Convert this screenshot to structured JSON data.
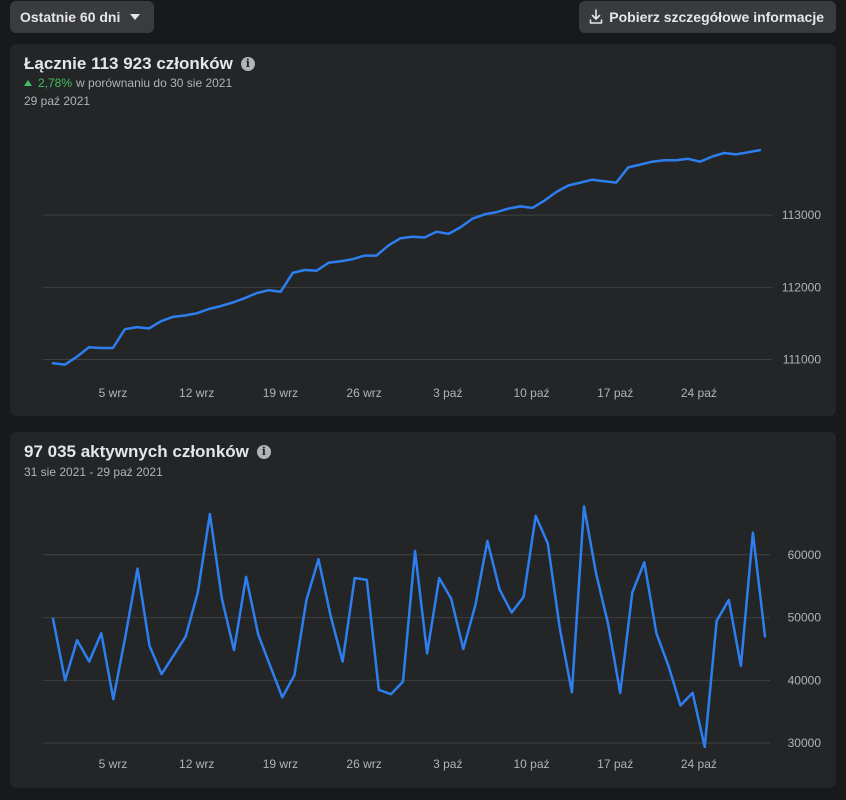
{
  "toolbar": {
    "range_label": "Ostatnie 60 dni",
    "range_icon": "chevron-down-icon",
    "download_label": "Pobierz szczegółowe informacje",
    "download_icon": "download-icon"
  },
  "members_card": {
    "title": "Łącznie 113 923 członków",
    "change_pct": "2,78%",
    "change_text": "w porównaniu do 30 sie 2021",
    "date": "29 paź 2021"
  },
  "active_card": {
    "title": "97 035 aktywnych członków",
    "date": "31 sie 2021 - 29 paź 2021"
  },
  "colors": {
    "line": "#2d7ff0",
    "positive": "#45bd62",
    "grid": "#3e4042",
    "card": "#242526",
    "background": "#18191a"
  },
  "chart_data": [
    {
      "type": "line",
      "title": "Łącznie 113 923 członków",
      "x_tick_labels": [
        "5 wrz",
        "12 wrz",
        "19 wrz",
        "26 wrz",
        "3 paź",
        "10 paź",
        "17 paź",
        "24 paź"
      ],
      "y_ticks": [
        111000,
        112000,
        113000
      ],
      "ylim": [
        110800,
        114400
      ],
      "grid": true,
      "values": [
        110950,
        110930,
        111040,
        111170,
        111160,
        111160,
        111420,
        111450,
        111430,
        111530,
        111590,
        111610,
        111640,
        111700,
        111740,
        111790,
        111850,
        111920,
        111960,
        111940,
        112200,
        112240,
        112230,
        112340,
        112360,
        112390,
        112440,
        112440,
        112580,
        112680,
        112700,
        112690,
        112770,
        112740,
        112830,
        112950,
        113010,
        113040,
        113090,
        113120,
        113100,
        113200,
        113320,
        113410,
        113450,
        113490,
        113470,
        113450,
        113660,
        113700,
        113740,
        113760,
        113760,
        113780,
        113740,
        113810,
        113860,
        113840,
        113870,
        113900
      ]
    },
    {
      "type": "line",
      "title": "97 035 aktywnych członków",
      "x_tick_labels": [
        "5 wrz",
        "12 wrz",
        "19 wrz",
        "26 wrz",
        "3 paź",
        "10 paź",
        "17 paź",
        "24 paź"
      ],
      "y_ticks": [
        30000,
        40000,
        50000,
        60000
      ],
      "ylim": [
        27000,
        70000
      ],
      "grid": true,
      "values": [
        49800,
        40000,
        46400,
        43000,
        47500,
        37000,
        47000,
        57800,
        45500,
        41000,
        44000,
        47000,
        54000,
        66500,
        53000,
        44800,
        56500,
        47300,
        42300,
        37300,
        40800,
        52800,
        59300,
        50300,
        43000,
        56300,
        56000,
        38500,
        37800,
        39800,
        60600,
        44300,
        56300,
        53000,
        45000,
        52000,
        62200,
        54500,
        50800,
        53300,
        66200,
        61800,
        48300,
        38100,
        67700,
        57000,
        49000,
        38000,
        54000,
        58800,
        47500,
        42300,
        36000,
        38000,
        29400,
        49500,
        52800,
        42300,
        63500,
        47000
      ]
    }
  ]
}
